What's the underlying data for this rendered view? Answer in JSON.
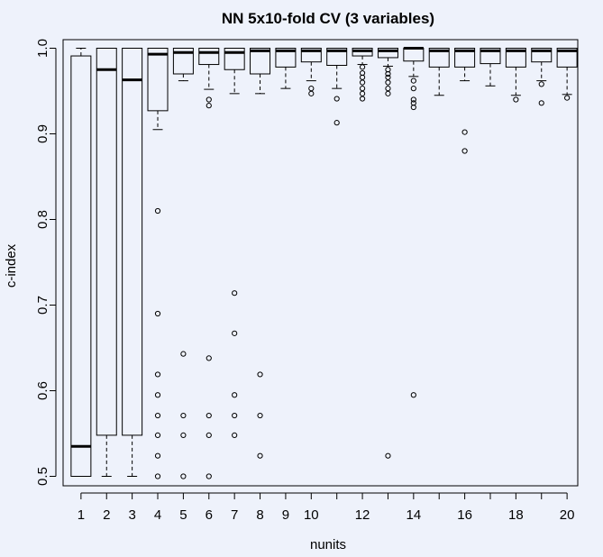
{
  "chart_data": {
    "type": "boxplot",
    "title": "NN 5x10-fold CV (3 variables)",
    "xlabel": "nunits",
    "ylabel": "c-index",
    "ylim": [
      0.49,
      1.01
    ],
    "yticks": [
      0.5,
      0.6,
      0.7,
      0.8,
      0.9,
      1.0
    ],
    "ytick_labels": [
      "0.5",
      "0.6",
      "0.7",
      "0.8",
      "0.9",
      "1.0"
    ],
    "xticks": [
      1,
      2,
      3,
      4,
      5,
      6,
      7,
      8,
      9,
      10,
      12,
      14,
      16,
      18,
      20
    ],
    "grid": false,
    "boxes": [
      {
        "x": 1,
        "lw": 0.5,
        "q1": 0.5,
        "med": 0.535,
        "q3": 0.991,
        "uw": 1.0,
        "out": []
      },
      {
        "x": 2,
        "lw": 0.5,
        "q1": 0.548,
        "med": 0.975,
        "q3": 1.0,
        "uw": 1.0,
        "out": []
      },
      {
        "x": 3,
        "lw": 0.5,
        "q1": 0.548,
        "med": 0.963,
        "q3": 1.0,
        "uw": 1.0,
        "out": []
      },
      {
        "x": 4,
        "lw": 0.905,
        "q1": 0.927,
        "med": 0.993,
        "q3": 1.0,
        "uw": 1.0,
        "out": [
          0.81,
          0.69,
          0.619,
          0.595,
          0.571,
          0.548,
          0.524,
          0.5
        ]
      },
      {
        "x": 5,
        "lw": 0.962,
        "q1": 0.97,
        "med": 0.995,
        "q3": 1.0,
        "uw": 1.0,
        "out": [
          0.643,
          0.571,
          0.548,
          0.5
        ]
      },
      {
        "x": 6,
        "lw": 0.952,
        "q1": 0.981,
        "med": 0.995,
        "q3": 1.0,
        "uw": 1.0,
        "out": [
          0.94,
          0.933,
          0.638,
          0.571,
          0.548,
          0.5
        ]
      },
      {
        "x": 7,
        "lw": 0.947,
        "q1": 0.975,
        "med": 0.995,
        "q3": 1.0,
        "uw": 1.0,
        "out": [
          0.714,
          0.667,
          0.595,
          0.571,
          0.548
        ]
      },
      {
        "x": 8,
        "lw": 0.947,
        "q1": 0.97,
        "med": 0.997,
        "q3": 1.0,
        "uw": 1.0,
        "out": [
          0.619,
          0.571,
          0.524
        ]
      },
      {
        "x": 9,
        "lw": 0.953,
        "q1": 0.978,
        "med": 0.997,
        "q3": 1.0,
        "uw": 1.0,
        "out": []
      },
      {
        "x": 10,
        "lw": 0.962,
        "q1": 0.984,
        "med": 0.997,
        "q3": 1.0,
        "uw": 1.0,
        "out": [
          0.953,
          0.947
        ]
      },
      {
        "x": 11,
        "lw": 0.953,
        "q1": 0.98,
        "med": 0.997,
        "q3": 1.0,
        "uw": 1.0,
        "out": [
          0.941,
          0.913
        ]
      },
      {
        "x": 12,
        "lw": 0.981,
        "q1": 0.991,
        "med": 0.997,
        "q3": 1.0,
        "uw": 1.0,
        "out": [
          0.978,
          0.971,
          0.966,
          0.96,
          0.953,
          0.947,
          0.941
        ]
      },
      {
        "x": 13,
        "lw": 0.979,
        "q1": 0.989,
        "med": 0.997,
        "q3": 1.0,
        "uw": 1.0,
        "out": [
          0.975,
          0.97,
          0.966,
          0.96,
          0.953,
          0.947,
          0.524
        ]
      },
      {
        "x": 14,
        "lw": 0.967,
        "q1": 0.985,
        "med": 1.0,
        "q3": 1.0,
        "uw": 1.0,
        "out": [
          0.962,
          0.953,
          0.94,
          0.936,
          0.931,
          0.595
        ]
      },
      {
        "x": 15,
        "lw": 0.945,
        "q1": 0.978,
        "med": 0.997,
        "q3": 1.0,
        "uw": 1.0,
        "out": []
      },
      {
        "x": 16,
        "lw": 0.962,
        "q1": 0.978,
        "med": 0.997,
        "q3": 1.0,
        "uw": 1.0,
        "out": [
          0.902,
          0.88
        ]
      },
      {
        "x": 17,
        "lw": 0.956,
        "q1": 0.982,
        "med": 0.997,
        "q3": 1.0,
        "uw": 1.0,
        "out": []
      },
      {
        "x": 18,
        "lw": 0.945,
        "q1": 0.978,
        "med": 0.997,
        "q3": 1.0,
        "uw": 1.0,
        "out": [
          0.94
        ]
      },
      {
        "x": 19,
        "lw": 0.962,
        "q1": 0.984,
        "med": 0.997,
        "q3": 1.0,
        "uw": 1.0,
        "out": [
          0.958,
          0.936
        ]
      },
      {
        "x": 20,
        "lw": 0.946,
        "q1": 0.978,
        "med": 0.997,
        "q3": 1.0,
        "uw": 1.0,
        "out": [
          0.942
        ]
      }
    ]
  }
}
